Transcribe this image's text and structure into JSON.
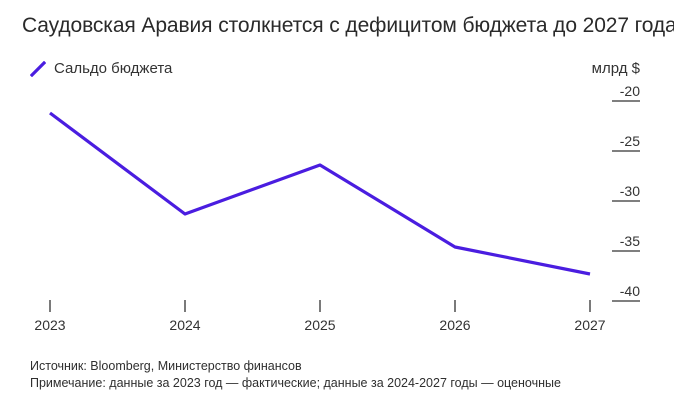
{
  "chart_data": {
    "type": "line",
    "title": "Саудовская Аравия столкнется с дефицитом бюджета до 2027 года",
    "unit_label": "млрд $",
    "x": [
      "2023",
      "2024",
      "2025",
      "2026",
      "2027"
    ],
    "series": [
      {
        "name": "Сальдо бюджета",
        "color": "#4a1de0",
        "values": [
          -22.1,
          -32.2,
          -27.3,
          -35.5,
          -38.2
        ]
      }
    ],
    "y_ticks": [
      "-20",
      "-25",
      "-30",
      "-35",
      "-40"
    ],
    "ylim": [
      -40,
      -20
    ],
    "grid": false,
    "legend_position": "top-left"
  },
  "notes": {
    "source": "Источник: Bloomberg, Министерство финансов",
    "remark": "Примечание: данные за 2023 год — фактические; данные за 2024-2027 годы — оценочные"
  }
}
